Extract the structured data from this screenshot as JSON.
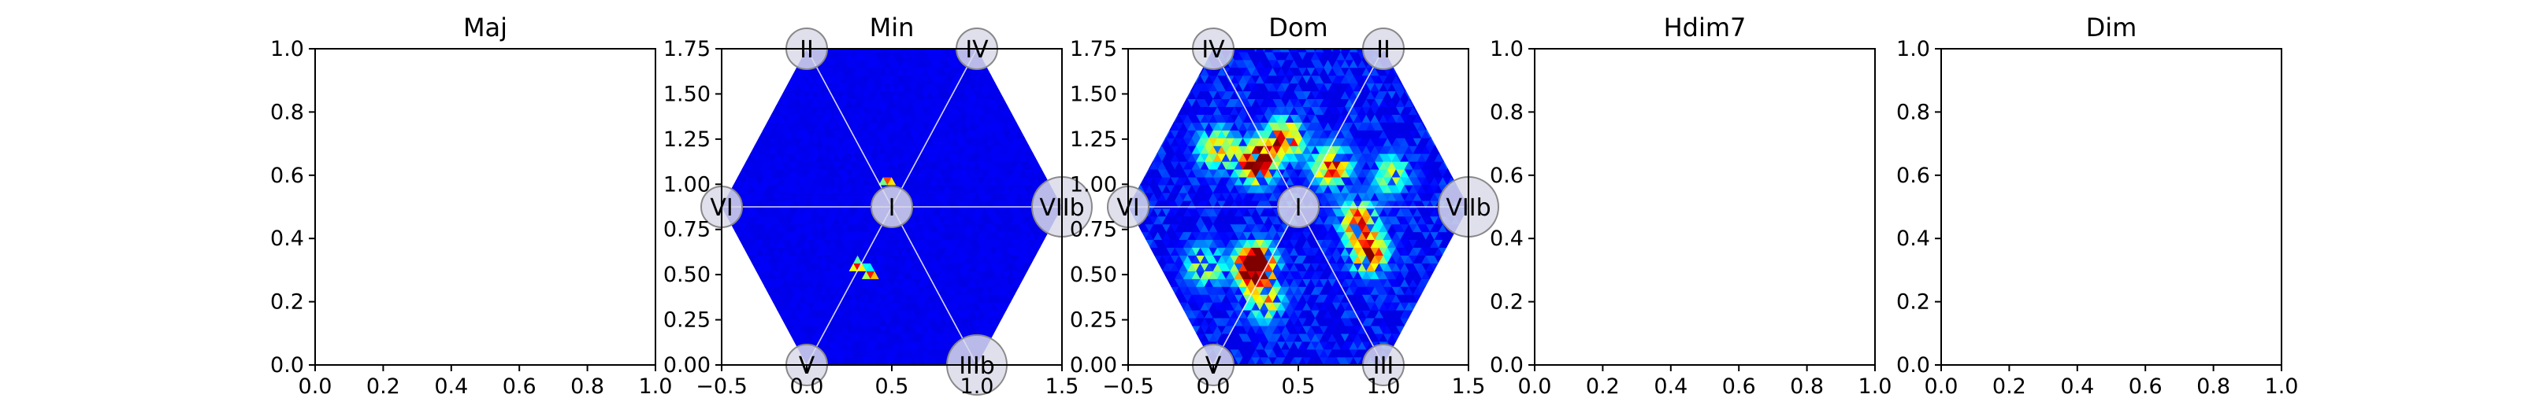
{
  "chart_data": [
    {
      "type": "scatter",
      "title": "Maj",
      "xlim": [
        0.0,
        1.0
      ],
      "ylim": [
        0.0,
        1.0
      ],
      "xticks": [
        "0.0",
        "0.2",
        "0.4",
        "0.6",
        "0.8",
        "1.0"
      ],
      "yticks": [
        "0.0",
        "0.2",
        "0.4",
        "0.6",
        "0.8",
        "1.0"
      ],
      "empty": true
    },
    {
      "type": "heatmap",
      "title": "Min",
      "xlim": [
        -0.5,
        1.5
      ],
      "ylim": [
        0.0,
        1.75
      ],
      "xticks": [
        "−0.5",
        "0.0",
        "0.5",
        "1.0",
        "1.5"
      ],
      "yticks": [
        "0.00",
        "0.25",
        "0.50",
        "0.75",
        "1.00",
        "1.25",
        "1.50",
        "1.75"
      ],
      "nodes": [
        {
          "label": "I",
          "x": 0.5,
          "y": 0.875
        },
        {
          "label": "II",
          "x": 0.0,
          "y": 1.75
        },
        {
          "label": "IV",
          "x": 1.0,
          "y": 1.75
        },
        {
          "label": "VI",
          "x": -0.5,
          "y": 0.875
        },
        {
          "label": "VIIb",
          "x": 1.5,
          "y": 0.875
        },
        {
          "label": "V",
          "x": 0.0,
          "y": 0.0
        },
        {
          "label": "IIIb",
          "x": 1.0,
          "y": 0.0
        }
      ],
      "background_color": "#1a1aa0",
      "hotspots": [
        {
          "x": 0.3,
          "y": 0.55,
          "intensity": 0.95
        },
        {
          "x": 0.38,
          "y": 0.5,
          "intensity": 0.9
        },
        {
          "x": 0.48,
          "y": 1.02,
          "intensity": 0.85
        }
      ]
    },
    {
      "type": "heatmap",
      "title": "Dom",
      "xlim": [
        -0.5,
        1.5
      ],
      "ylim": [
        0.0,
        1.75
      ],
      "xticks": [
        "−0.5",
        "0.0",
        "0.5",
        "1.0",
        "1.5"
      ],
      "yticks": [
        "0.00",
        "0.25",
        "0.50",
        "0.75",
        "1.00",
        "1.25",
        "1.50",
        "1.75"
      ],
      "nodes": [
        {
          "label": "I",
          "x": 0.5,
          "y": 0.875
        },
        {
          "label": "IV",
          "x": 0.0,
          "y": 1.75
        },
        {
          "label": "II",
          "x": 1.0,
          "y": 1.75
        },
        {
          "label": "VI",
          "x": -0.5,
          "y": 0.875
        },
        {
          "label": "VIIb",
          "x": 1.5,
          "y": 0.875
        },
        {
          "label": "V",
          "x": 0.0,
          "y": 0.0
        },
        {
          "label": "III",
          "x": 1.0,
          "y": 0.0
        }
      ],
      "background_color": "#1a1aa0",
      "hotspots": [
        {
          "x": 0.25,
          "y": 1.12,
          "intensity": 1.0
        },
        {
          "x": 0.42,
          "y": 1.25,
          "intensity": 0.8
        },
        {
          "x": 0.02,
          "y": 1.2,
          "intensity": 0.65
        },
        {
          "x": 0.7,
          "y": 1.1,
          "intensity": 0.75
        },
        {
          "x": 0.85,
          "y": 0.8,
          "intensity": 0.7
        },
        {
          "x": 0.92,
          "y": 0.62,
          "intensity": 0.8
        },
        {
          "x": 0.25,
          "y": 0.55,
          "intensity": 0.75
        },
        {
          "x": 0.25,
          "y": 0.55,
          "intensity": 0.6
        },
        {
          "x": 0.3,
          "y": 0.35,
          "intensity": 0.55
        },
        {
          "x": -0.05,
          "y": 0.55,
          "intensity": 0.5
        },
        {
          "x": 1.05,
          "y": 1.05,
          "intensity": 0.5
        }
      ]
    },
    {
      "type": "scatter",
      "title": "Hdim7",
      "xlim": [
        0.0,
        1.0
      ],
      "ylim": [
        0.0,
        1.0
      ],
      "xticks": [
        "0.0",
        "0.2",
        "0.4",
        "0.6",
        "0.8",
        "1.0"
      ],
      "yticks": [
        "0.0",
        "0.2",
        "0.4",
        "0.6",
        "0.8",
        "1.0"
      ],
      "empty": true
    },
    {
      "type": "scatter",
      "title": "Dim",
      "xlim": [
        0.0,
        1.0
      ],
      "ylim": [
        0.0,
        1.0
      ],
      "xticks": [
        "0.0",
        "0.2",
        "0.4",
        "0.6",
        "0.8",
        "1.0"
      ],
      "yticks": [
        "0.0",
        "0.2",
        "0.4",
        "0.6",
        "0.8",
        "1.0"
      ],
      "empty": true
    }
  ]
}
